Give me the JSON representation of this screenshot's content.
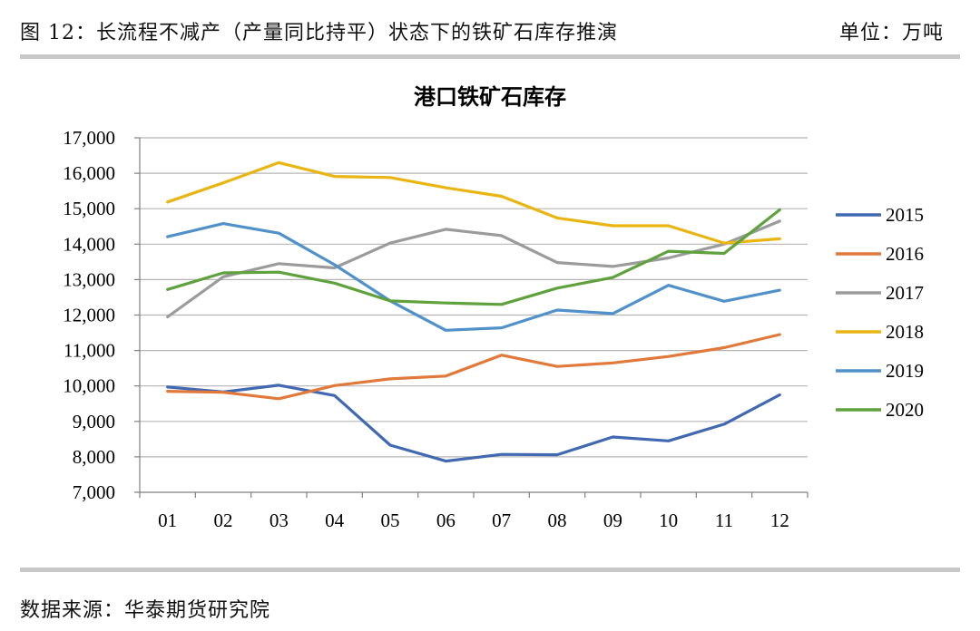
{
  "figure": {
    "title": "图 12：长流程不减产（产量同比持平）状态下的铁矿石库存推演",
    "unit": "单位：万吨",
    "source": "数据来源：华泰期货研究院"
  },
  "chart_data": {
    "type": "line",
    "title": "港口铁矿石库存",
    "xlabel": "",
    "ylabel": "",
    "categories": [
      "01",
      "02",
      "03",
      "04",
      "05",
      "06",
      "07",
      "08",
      "09",
      "10",
      "11",
      "12"
    ],
    "ylim": [
      7000,
      17000
    ],
    "yticks": [
      7000,
      8000,
      9000,
      10000,
      11000,
      12000,
      13000,
      14000,
      15000,
      16000,
      17000
    ],
    "ytick_labels": [
      "7,000",
      "8,000",
      "9,000",
      "10,000",
      "11,000",
      "12,000",
      "13,000",
      "14,000",
      "15,000",
      "16,000",
      "17,000"
    ],
    "grid": true,
    "legend": "right",
    "series": [
      {
        "name": "2015",
        "color": "#4169b2",
        "values": [
          9970,
          9830,
          10020,
          9730,
          8330,
          7880,
          8070,
          8060,
          8560,
          8450,
          8920,
          9750
        ]
      },
      {
        "name": "2016",
        "color": "#e0793a",
        "values": [
          9850,
          9820,
          9640,
          10010,
          10200,
          10280,
          10870,
          10550,
          10650,
          10830,
          11080,
          11450
        ]
      },
      {
        "name": "2017",
        "color": "#9b9b9b",
        "values": [
          11950,
          13080,
          13450,
          13330,
          14030,
          14420,
          14240,
          13480,
          13370,
          13610,
          14000,
          14650
        ]
      },
      {
        "name": "2018",
        "color": "#e9b512",
        "values": [
          15190,
          15730,
          16300,
          15910,
          15880,
          15590,
          15350,
          14740,
          14520,
          14520,
          14030,
          14150
        ]
      },
      {
        "name": "2019",
        "color": "#4f91c8",
        "values": [
          14210,
          14580,
          14310,
          13420,
          12400,
          11570,
          11640,
          12140,
          12040,
          12840,
          12390,
          12700
        ]
      },
      {
        "name": "2020",
        "color": "#5fa23d",
        "values": [
          12720,
          13190,
          13210,
          12900,
          12400,
          12340,
          12300,
          12760,
          13060,
          13800,
          13740,
          14970
        ]
      }
    ]
  }
}
